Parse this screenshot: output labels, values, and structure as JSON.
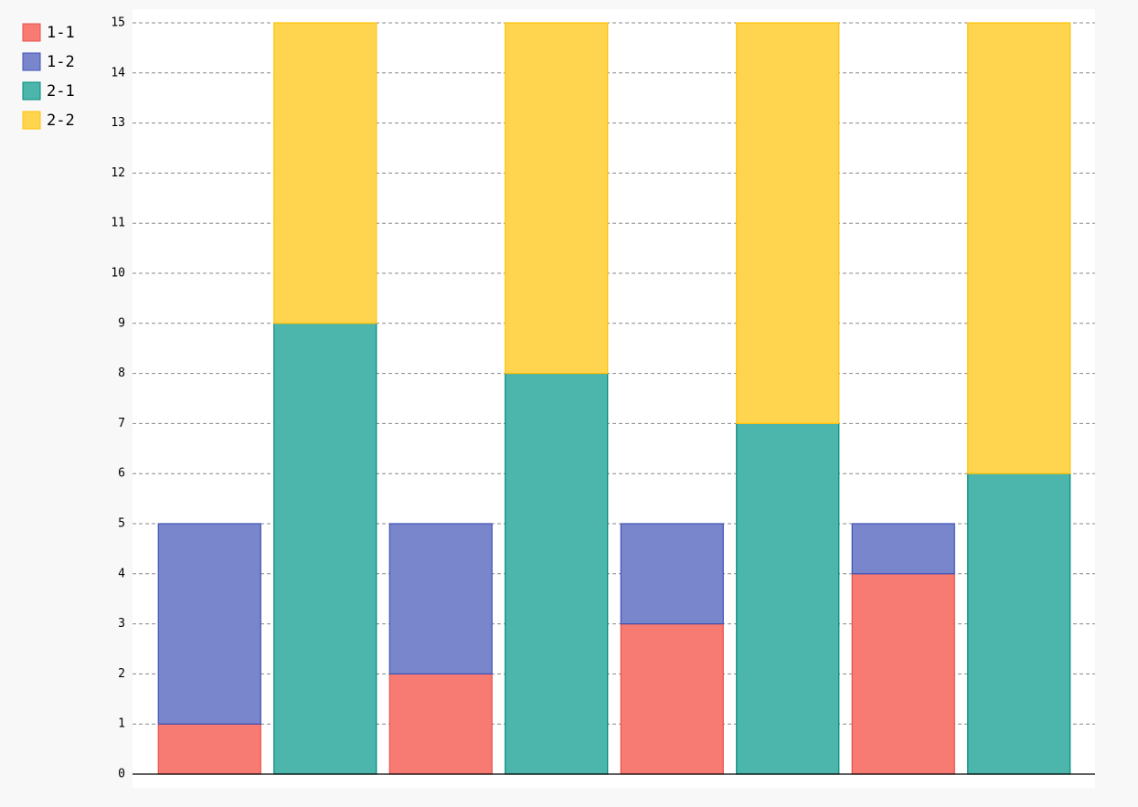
{
  "chart_data": {
    "type": "stacked_bar",
    "categories": [
      null,
      null,
      null,
      null,
      null,
      null,
      null,
      null
    ],
    "series": [
      {
        "name": "1-1",
        "color": "#f77b72",
        "border_color": "#e8514a",
        "values": [
          1,
          null,
          2,
          null,
          3,
          null,
          4,
          null
        ]
      },
      {
        "name": "1-2",
        "color": "#7986cb",
        "border_color": "#3f51b5",
        "values": [
          4,
          null,
          3,
          null,
          2,
          null,
          1,
          null
        ]
      },
      {
        "name": "2-1",
        "color": "#4db6ac",
        "border_color": "#00897b",
        "values": [
          null,
          9,
          null,
          8,
          null,
          7,
          null,
          6
        ]
      },
      {
        "name": "2-2",
        "color": "#ffd54f",
        "border_color": "#ffc107",
        "values": [
          null,
          6,
          null,
          7,
          null,
          8,
          null,
          9
        ]
      }
    ],
    "ylim": [
      0,
      15
    ],
    "yticks": [
      0,
      1,
      2,
      3,
      4,
      5,
      6,
      7,
      8,
      9,
      10,
      11,
      12,
      13,
      14,
      15
    ],
    "grid": true,
    "legend": "top-left"
  }
}
